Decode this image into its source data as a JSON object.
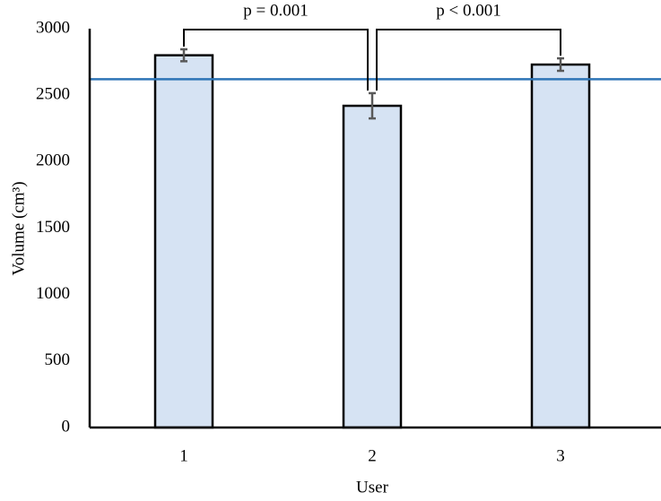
{
  "chart_data": {
    "type": "bar",
    "x_label": "User",
    "y_label": "Volume (cm³)",
    "categories": [
      "1",
      "2",
      "3"
    ],
    "values": [
      2800,
      2420,
      2730
    ],
    "errors": [
      45,
      95,
      47
    ],
    "color": "#d6e3f3",
    "edge_color": "#000000",
    "error_color": "#595959",
    "reference_line": 2620,
    "reference_color": "#2e75b6",
    "annotations": [
      "p = 0.001",
      "p < 0.001"
    ],
    "ylim": [
      0,
      3000
    ],
    "yticks": [
      0,
      500,
      1000,
      1500,
      2000,
      2500,
      3000
    ],
    "grid": false
  }
}
